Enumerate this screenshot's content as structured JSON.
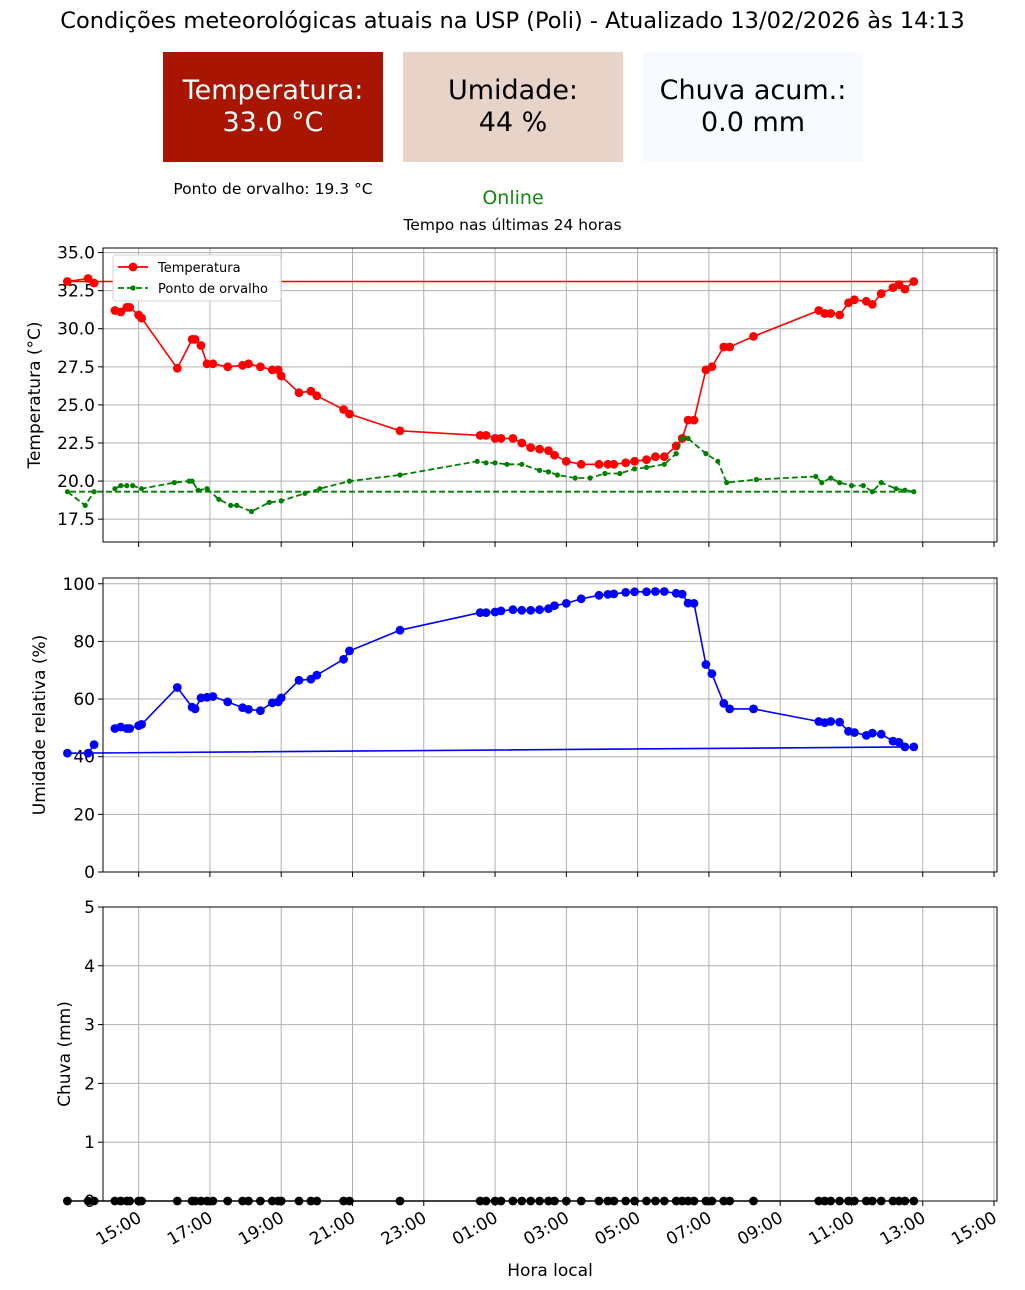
{
  "header": {
    "title": "Condições meteorológicas atuais na USP (Poli) - Atualizado 13/02/2026 às 14:13",
    "status": "Online",
    "subtitle": "Tempo nas últimas 24 horas",
    "dew_point_text": "Ponto de orvalho: 19.3 °C"
  },
  "cards": {
    "temperature": {
      "label": "Temperatura:",
      "value": "33.0 °C",
      "color": "#a81500"
    },
    "humidity": {
      "label": "Umidade:",
      "value": "44 %",
      "color": "#e8d3c8"
    },
    "rain": {
      "label": "Chuva acum.:",
      "value": "0.0 mm",
      "color": "#f7faff"
    }
  },
  "colors": {
    "status": "#118a11",
    "temperature": "#ff0000",
    "dew_point": "#008000",
    "humidity": "#0000ff",
    "rain": "#000000"
  },
  "chart_data": [
    {
      "type": "line",
      "ylabel": "Temperatura (°C)",
      "ylim": [
        16.0,
        35.3
      ],
      "yticks": [
        17.5,
        20.0,
        22.5,
        25.0,
        27.5,
        30.0,
        32.5,
        35.0
      ],
      "xlim": [
        "14:00",
        "15:05"
      ],
      "grid": true,
      "legend": "top-left",
      "series": [
        {
          "name": "Temperatura",
          "color": "#ff0000",
          "style": "solid-circle",
          "points": [
            [
              "14:20",
              31.2
            ],
            [
              "14:30",
              31.1
            ],
            [
              "14:40",
              31.4
            ],
            [
              "14:45",
              31.4
            ],
            [
              "15:00",
              30.9
            ],
            [
              "15:05",
              30.7
            ],
            [
              "16:05",
              27.4
            ],
            [
              "16:30",
              29.3
            ],
            [
              "16:35",
              29.3
            ],
            [
              "16:45",
              28.9
            ],
            [
              "16:55",
              27.7
            ],
            [
              "17:05",
              27.7
            ],
            [
              "17:30",
              27.5
            ],
            [
              "17:55",
              27.6
            ],
            [
              "18:05",
              27.7
            ],
            [
              "18:25",
              27.5
            ],
            [
              "18:45",
              27.3
            ],
            [
              "18:55",
              27.3
            ],
            [
              "19:00",
              26.9
            ],
            [
              "19:30",
              25.8
            ],
            [
              "19:50",
              25.9
            ],
            [
              "20:00",
              25.6
            ],
            [
              "20:45",
              24.7
            ],
            [
              "20:55",
              24.4
            ],
            [
              "22:20",
              23.3
            ],
            [
              "00:35",
              23.0
            ],
            [
              "00:45",
              23.0
            ],
            [
              "01:00",
              22.8
            ],
            [
              "01:10",
              22.8
            ],
            [
              "01:30",
              22.8
            ],
            [
              "01:45",
              22.5
            ],
            [
              "02:00",
              22.2
            ],
            [
              "02:15",
              22.1
            ],
            [
              "02:30",
              22.0
            ],
            [
              "02:40",
              21.7
            ],
            [
              "03:00",
              21.3
            ],
            [
              "03:25",
              21.1
            ],
            [
              "03:55",
              21.1
            ],
            [
              "04:10",
              21.1
            ],
            [
              "04:20",
              21.1
            ],
            [
              "04:40",
              21.2
            ],
            [
              "04:55",
              21.3
            ],
            [
              "05:15",
              21.4
            ],
            [
              "05:30",
              21.6
            ],
            [
              "05:45",
              21.6
            ],
            [
              "06:05",
              22.3
            ],
            [
              "06:15",
              22.8
            ],
            [
              "06:25",
              24.0
            ],
            [
              "06:35",
              24.0
            ],
            [
              "06:55",
              27.3
            ],
            [
              "07:05",
              27.5
            ],
            [
              "07:25",
              28.8
            ],
            [
              "07:35",
              28.8
            ],
            [
              "08:15",
              29.5
            ],
            [
              "10:05",
              31.2
            ],
            [
              "10:15",
              31.0
            ],
            [
              "10:25",
              31.0
            ],
            [
              "10:40",
              30.9
            ],
            [
              "10:55",
              31.7
            ],
            [
              "11:05",
              31.9
            ],
            [
              "11:25",
              31.8
            ],
            [
              "11:35",
              31.6
            ],
            [
              "11:50",
              32.3
            ],
            [
              "12:10",
              32.7
            ],
            [
              "12:20",
              32.9
            ],
            [
              "12:30",
              32.6
            ],
            [
              "12:45",
              33.1
            ],
            [
              "13:00",
              33.1
            ],
            [
              "13:35",
              33.3
            ],
            [
              "13:45",
              33.0
            ]
          ]
        },
        {
          "name": "Ponto de orvalho",
          "color": "#008000",
          "style": "dashed-point",
          "points": [
            [
              "14:20",
              19.5
            ],
            [
              "14:30",
              19.7
            ],
            [
              "14:40",
              19.7
            ],
            [
              "14:50",
              19.7
            ],
            [
              "15:05",
              19.5
            ],
            [
              "16:00",
              19.9
            ],
            [
              "16:25",
              20.0
            ],
            [
              "16:30",
              20.0
            ],
            [
              "16:40",
              19.4
            ],
            [
              "16:55",
              19.5
            ],
            [
              "17:15",
              18.8
            ],
            [
              "17:35",
              18.4
            ],
            [
              "17:45",
              18.4
            ],
            [
              "18:10",
              18.0
            ],
            [
              "18:40",
              18.6
            ],
            [
              "19:00",
              18.7
            ],
            [
              "19:40",
              19.2
            ],
            [
              "20:05",
              19.5
            ],
            [
              "20:55",
              20.0
            ],
            [
              "22:20",
              20.4
            ],
            [
              "00:30",
              21.3
            ],
            [
              "00:45",
              21.2
            ],
            [
              "01:00",
              21.2
            ],
            [
              "01:20",
              21.1
            ],
            [
              "01:45",
              21.1
            ],
            [
              "02:15",
              20.7
            ],
            [
              "02:30",
              20.6
            ],
            [
              "02:45",
              20.4
            ],
            [
              "03:15",
              20.2
            ],
            [
              "03:40",
              20.2
            ],
            [
              "04:05",
              20.5
            ],
            [
              "04:30",
              20.5
            ],
            [
              "04:55",
              20.8
            ],
            [
              "05:15",
              20.9
            ],
            [
              "05:45",
              21.1
            ],
            [
              "06:05",
              21.8
            ],
            [
              "06:15",
              22.8
            ],
            [
              "06:25",
              22.8
            ],
            [
              "06:55",
              21.8
            ],
            [
              "07:15",
              21.3
            ],
            [
              "07:30",
              19.9
            ],
            [
              "08:20",
              20.1
            ],
            [
              "10:00",
              20.3
            ],
            [
              "10:10",
              19.9
            ],
            [
              "10:25",
              20.2
            ],
            [
              "10:40",
              19.9
            ],
            [
              "11:00",
              19.7
            ],
            [
              "11:20",
              19.7
            ],
            [
              "11:35",
              19.3
            ],
            [
              "11:50",
              19.9
            ],
            [
              "12:15",
              19.5
            ],
            [
              "12:30",
              19.4
            ],
            [
              "12:45",
              19.3
            ],
            [
              "13:00",
              19.3
            ],
            [
              "13:30",
              18.4
            ],
            [
              "13:45",
              19.3
            ]
          ]
        }
      ]
    },
    {
      "type": "line",
      "ylabel": "Umidade relativa (%)",
      "ylim": [
        0,
        102
      ],
      "yticks": [
        0,
        20,
        40,
        60,
        80,
        100
      ],
      "grid": true,
      "series": [
        {
          "name": "Umidade relativa",
          "color": "#0000ff",
          "style": "solid-circle",
          "points": [
            [
              "14:20",
              49.8
            ],
            [
              "14:30",
              50.3
            ],
            [
              "14:40",
              49.8
            ],
            [
              "14:45",
              49.8
            ],
            [
              "15:00",
              50.8
            ],
            [
              "15:05",
              51.2
            ],
            [
              "16:05",
              64.0
            ],
            [
              "16:30",
              57.2
            ],
            [
              "16:35",
              56.6
            ],
            [
              "16:45",
              60.4
            ],
            [
              "16:55",
              60.6
            ],
            [
              "17:05",
              60.9
            ],
            [
              "17:30",
              59.0
            ],
            [
              "17:55",
              57.0
            ],
            [
              "18:05",
              56.4
            ],
            [
              "18:25",
              56.0
            ],
            [
              "18:45",
              58.7
            ],
            [
              "18:55",
              59.0
            ],
            [
              "19:00",
              60.4
            ],
            [
              "19:30",
              66.5
            ],
            [
              "19:50",
              66.9
            ],
            [
              "20:00",
              68.3
            ],
            [
              "20:45",
              73.8
            ],
            [
              "20:55",
              76.7
            ],
            [
              "22:20",
              83.9
            ],
            [
              "00:35",
              90.0
            ],
            [
              "00:45",
              90.0
            ],
            [
              "01:00",
              90.2
            ],
            [
              "01:10",
              90.6
            ],
            [
              "01:30",
              91.0
            ],
            [
              "01:45",
              90.8
            ],
            [
              "02:00",
              90.8
            ],
            [
              "02:15",
              91.0
            ],
            [
              "02:30",
              91.4
            ],
            [
              "02:40",
              92.4
            ],
            [
              "03:00",
              93.2
            ],
            [
              "03:25",
              94.8
            ],
            [
              "03:55",
              96.0
            ],
            [
              "04:10",
              96.3
            ],
            [
              "04:20",
              96.5
            ],
            [
              "04:40",
              97.0
            ],
            [
              "04:55",
              97.2
            ],
            [
              "05:15",
              97.2
            ],
            [
              "05:30",
              97.3
            ],
            [
              "05:45",
              97.3
            ],
            [
              "06:05",
              96.7
            ],
            [
              "06:15",
              96.4
            ],
            [
              "06:25",
              93.3
            ],
            [
              "06:35",
              93.2
            ],
            [
              "06:55",
              72.0
            ],
            [
              "07:05",
              68.8
            ],
            [
              "07:25",
              58.5
            ],
            [
              "07:35",
              56.6
            ],
            [
              "08:15",
              56.6
            ],
            [
              "10:05",
              52.2
            ],
            [
              "10:15",
              51.8
            ],
            [
              "10:25",
              52.2
            ],
            [
              "10:40",
              52.0
            ],
            [
              "10:55",
              48.8
            ],
            [
              "11:05",
              48.4
            ],
            [
              "11:25",
              47.4
            ],
            [
              "11:35",
              48.2
            ],
            [
              "11:50",
              47.8
            ],
            [
              "12:10",
              45.4
            ],
            [
              "12:20",
              45.0
            ],
            [
              "12:30",
              43.4
            ],
            [
              "12:45",
              43.4
            ],
            [
              "13:00",
              41.2
            ],
            [
              "13:35",
              41.2
            ],
            [
              "13:45",
              44.2
            ]
          ]
        }
      ]
    },
    {
      "type": "line",
      "ylabel": "Chuva (mm)",
      "xlabel": "Hora local",
      "ylim": [
        0,
        5
      ],
      "yticks": [
        0,
        1,
        2,
        3,
        4,
        5
      ],
      "grid": true,
      "xticks": [
        "15:00",
        "17:00",
        "19:00",
        "21:00",
        "23:00",
        "01:00",
        "03:00",
        "05:00",
        "07:00",
        "09:00",
        "11:00",
        "13:00",
        "15:00"
      ],
      "series": [
        {
          "name": "Chuva",
          "color": "#000000",
          "style": "solid-circle",
          "value": 0.0,
          "times": [
            "14:20",
            "14:30",
            "14:40",
            "14:45",
            "15:00",
            "15:05",
            "16:05",
            "16:30",
            "16:35",
            "16:45",
            "16:55",
            "17:05",
            "17:30",
            "17:55",
            "18:05",
            "18:25",
            "18:45",
            "18:55",
            "19:00",
            "19:30",
            "19:50",
            "20:00",
            "20:45",
            "20:55",
            "22:20",
            "00:35",
            "00:45",
            "01:00",
            "01:10",
            "01:30",
            "01:45",
            "02:00",
            "02:15",
            "02:30",
            "02:40",
            "03:00",
            "03:25",
            "03:55",
            "04:10",
            "04:20",
            "04:40",
            "04:55",
            "05:15",
            "05:30",
            "05:45",
            "06:05",
            "06:15",
            "06:25",
            "06:35",
            "06:55",
            "07:05",
            "07:25",
            "07:35",
            "08:15",
            "10:05",
            "10:15",
            "10:25",
            "10:40",
            "10:55",
            "11:05",
            "11:25",
            "11:35",
            "11:50",
            "12:10",
            "12:20",
            "12:30",
            "12:45",
            "13:00",
            "13:35",
            "13:45"
          ]
        }
      ]
    }
  ]
}
